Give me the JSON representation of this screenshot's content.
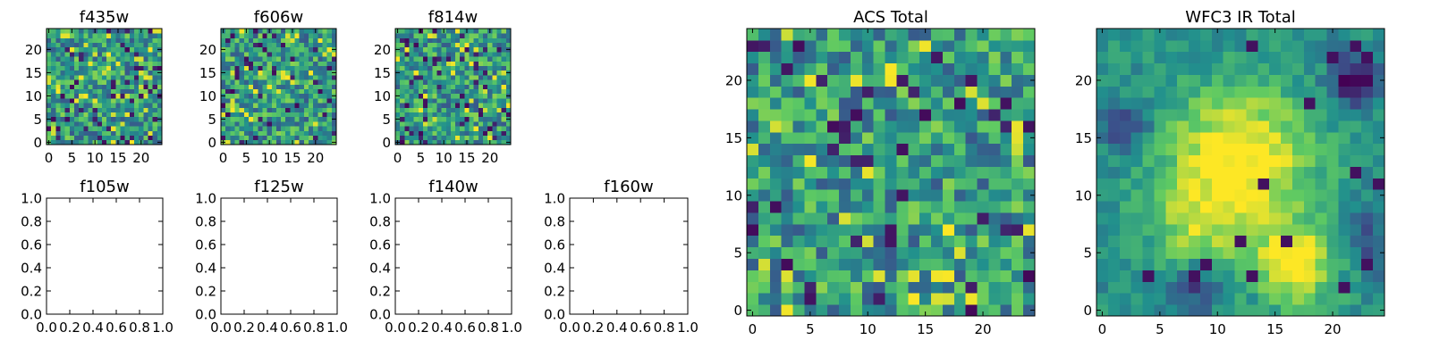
{
  "figure": {
    "background": "#ffffff",
    "colormap": "viridis",
    "colormap_stops": [
      "#440154",
      "#3b528b",
      "#21908d",
      "#5dc963",
      "#fde725"
    ]
  },
  "chart_data": [
    {
      "id": "f435w",
      "type": "heatmap",
      "title": "f435w",
      "xlim": [
        -0.5,
        24.5
      ],
      "ylim": [
        -0.5,
        24.5
      ],
      "grid": false,
      "xticks": [
        0,
        5,
        10,
        15,
        20
      ],
      "yticks": [
        0,
        5,
        10,
        15,
        20
      ],
      "grid_size": 25,
      "pattern": "random-noise",
      "seed": 435
    },
    {
      "id": "f606w",
      "type": "heatmap",
      "title": "f606w",
      "xlim": [
        -0.5,
        24.5
      ],
      "ylim": [
        -0.5,
        24.5
      ],
      "grid": false,
      "xticks": [
        0,
        5,
        10,
        15,
        20
      ],
      "yticks": [
        0,
        5,
        10,
        15,
        20
      ],
      "grid_size": 25,
      "pattern": "random-noise",
      "seed": 606
    },
    {
      "id": "f814w",
      "type": "heatmap",
      "title": "f814w",
      "xlim": [
        -0.5,
        24.5
      ],
      "ylim": [
        -0.5,
        24.5
      ],
      "grid": false,
      "xticks": [
        0,
        5,
        10,
        15,
        20
      ],
      "yticks": [
        0,
        5,
        10,
        15,
        20
      ],
      "grid_size": 25,
      "pattern": "random-noise",
      "seed": 814
    },
    {
      "id": "f105w",
      "type": "empty",
      "title": "f105w",
      "xlim": [
        0,
        1
      ],
      "ylim": [
        0,
        1
      ],
      "grid": false,
      "xticks": [
        "0.0",
        "0.2",
        "0.4",
        "0.6",
        "0.8",
        "1.0"
      ],
      "yticks": [
        "0.0",
        "0.2",
        "0.4",
        "0.6",
        "0.8",
        "1.0"
      ]
    },
    {
      "id": "f125w",
      "type": "empty",
      "title": "f125w",
      "xlim": [
        0,
        1
      ],
      "ylim": [
        0,
        1
      ],
      "grid": false,
      "xticks": [
        "0.0",
        "0.2",
        "0.4",
        "0.6",
        "0.8",
        "1.0"
      ],
      "yticks": [
        "0.0",
        "0.2",
        "0.4",
        "0.6",
        "0.8",
        "1.0"
      ]
    },
    {
      "id": "f140w",
      "type": "empty",
      "title": "f140w",
      "xlim": [
        0,
        1
      ],
      "ylim": [
        0,
        1
      ],
      "grid": false,
      "xticks": [
        "0.0",
        "0.2",
        "0.4",
        "0.6",
        "0.8",
        "1.0"
      ],
      "yticks": [
        "0.0",
        "0.2",
        "0.4",
        "0.6",
        "0.8",
        "1.0"
      ]
    },
    {
      "id": "f160w",
      "type": "empty",
      "title": "f160w",
      "xlim": [
        0,
        1
      ],
      "ylim": [
        0,
        1
      ],
      "grid": false,
      "xticks": [
        "0.0",
        "0.2",
        "0.4",
        "0.6",
        "0.8",
        "1.0"
      ],
      "yticks": [
        "0.0",
        "0.2",
        "0.4",
        "0.6",
        "0.8",
        "1.0"
      ]
    },
    {
      "id": "acs-total",
      "type": "heatmap",
      "title": "ACS Total",
      "xlim": [
        -0.5,
        24.5
      ],
      "ylim": [
        -0.5,
        24.5
      ],
      "grid": false,
      "xticks": [
        0,
        5,
        10,
        15,
        20
      ],
      "yticks": [
        0,
        5,
        10,
        15,
        20
      ],
      "grid_size": 25,
      "pattern": "random-noise",
      "seed": 1000
    },
    {
      "id": "wfc3-ir-total",
      "type": "heatmap",
      "title": "WFC3 IR Total",
      "xlim": [
        -0.5,
        24.5
      ],
      "ylim": [
        -0.5,
        24.5
      ],
      "grid": false,
      "xticks": [
        0,
        5,
        10,
        15,
        20
      ],
      "yticks": [
        0,
        5,
        10,
        15,
        20
      ],
      "grid_size": 25,
      "pattern": "smooth-blobs",
      "seed": 2000,
      "blobs": [
        {
          "x": 12,
          "y": 13,
          "sigma": 4.5,
          "amp": 0.55
        },
        {
          "x": 17,
          "y": 4,
          "sigma": 2.5,
          "amp": 0.5
        },
        {
          "x": 8,
          "y": 7,
          "sigma": 3.0,
          "amp": 0.25
        },
        {
          "x": 22,
          "y": 20,
          "sigma": 1.5,
          "amp": -0.55
        },
        {
          "x": 2,
          "y": 16,
          "sigma": 1.5,
          "amp": -0.3
        },
        {
          "x": 8,
          "y": 2,
          "sigma": 1.5,
          "amp": -0.35
        },
        {
          "x": 23,
          "y": 6,
          "sigma": 2.0,
          "amp": -0.25
        }
      ]
    }
  ]
}
